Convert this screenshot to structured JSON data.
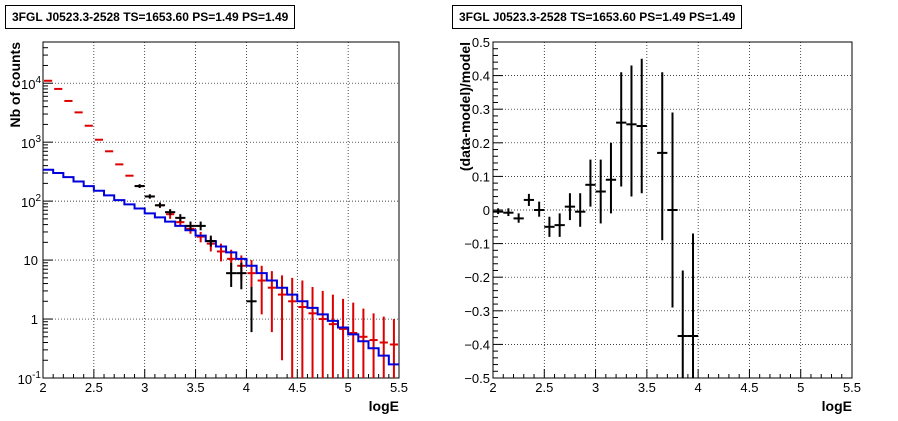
{
  "chart_data": [
    {
      "type": "histogram",
      "title": "3FGL J0523.3-2528 TS=1653.60 PS=1.49 PS=1.49",
      "xlabel": "logE",
      "ylabel": "Nb of counts",
      "xlim": [
        2,
        5.5
      ],
      "ylim": [
        0.1,
        50000
      ],
      "yscale": "log",
      "grid": true,
      "x_ticks": [
        "2",
        "2.5",
        "3",
        "3.5",
        "4",
        "4.5",
        "5",
        "5.5"
      ],
      "y_ticks": [
        "10^-1",
        "1",
        "10",
        "10^2",
        "10^3",
        "10^4"
      ],
      "series": [
        {
          "color": "#dd0000",
          "style": "markers-with-errors",
          "bins": [
            [
              2.0,
              2.1
            ],
            [
              2.1,
              2.2
            ],
            [
              2.2,
              2.3
            ],
            [
              2.3,
              2.4
            ],
            [
              2.4,
              2.5
            ],
            [
              2.5,
              2.6
            ],
            [
              2.6,
              2.7
            ],
            [
              2.7,
              2.8
            ],
            [
              2.8,
              2.9
            ],
            [
              2.9,
              3.0
            ],
            [
              3.0,
              3.1
            ],
            [
              3.1,
              3.2
            ],
            [
              3.2,
              3.3
            ],
            [
              3.3,
              3.4
            ],
            [
              3.4,
              3.5
            ],
            [
              3.5,
              3.6
            ],
            [
              3.6,
              3.7
            ],
            [
              3.7,
              3.8
            ],
            [
              3.8,
              3.9
            ],
            [
              3.9,
              4.0
            ],
            [
              4.0,
              4.1
            ],
            [
              4.1,
              4.2
            ],
            [
              4.2,
              4.3
            ],
            [
              4.3,
              4.4
            ],
            [
              4.4,
              4.5
            ],
            [
              4.5,
              4.6
            ],
            [
              4.6,
              4.7
            ],
            [
              4.7,
              4.8
            ],
            [
              4.8,
              4.9
            ],
            [
              4.9,
              5.0
            ],
            [
              5.0,
              5.1
            ],
            [
              5.1,
              5.2
            ],
            [
              5.2,
              5.3
            ],
            [
              5.3,
              5.4
            ],
            [
              5.4,
              5.5
            ]
          ],
          "values": [
            11000,
            8000,
            5000,
            3200,
            1900,
            1100,
            700,
            420,
            270,
            180,
            120,
            85,
            60,
            44,
            34,
            25,
            19,
            14,
            10.5,
            8,
            6,
            4.5,
            3.4,
            2.6,
            2,
            1.6,
            1.25,
            1.0,
            0.82,
            0.68,
            0.58,
            0.5,
            0.44,
            0.4,
            0.37
          ],
          "err_lo": [
            null,
            null,
            null,
            null,
            null,
            null,
            null,
            null,
            null,
            null,
            null,
            null,
            50,
            38,
            28,
            20,
            14,
            9.5,
            6.5,
            4.5,
            2.5,
            1.2,
            0.6,
            0.2,
            0.1,
            0.1,
            0.1,
            0.1,
            0.1,
            0.1,
            0.1,
            0.1,
            0.1,
            0.1,
            0.1
          ],
          "err_hi": [
            null,
            null,
            null,
            null,
            null,
            null,
            null,
            null,
            null,
            null,
            null,
            null,
            72,
            52,
            40,
            30,
            24,
            19,
            15,
            12,
            10,
            8,
            6.5,
            5.5,
            5,
            4.5,
            3.5,
            3,
            2.6,
            2.2,
            1.9,
            1.5,
            1.25,
            1.1,
            1.0
          ]
        },
        {
          "color": "#0000dd",
          "style": "step",
          "edges": [
            2.0,
            2.1,
            2.2,
            2.3,
            2.4,
            2.5,
            2.6,
            2.7,
            2.8,
            2.9,
            3.0,
            3.1,
            3.2,
            3.3,
            3.4,
            3.5,
            3.6,
            3.7,
            3.8,
            3.9,
            4.0,
            4.1,
            4.2,
            4.3,
            4.4,
            4.5,
            4.6,
            4.7,
            4.8,
            4.9,
            5.0,
            5.1,
            5.2,
            5.3,
            5.4,
            5.5
          ],
          "values": [
            340,
            300,
            255,
            215,
            180,
            150,
            125,
            104,
            88,
            75,
            62,
            53,
            45,
            38,
            32,
            26,
            21,
            17,
            13.5,
            10.5,
            8,
            6,
            4.5,
            3.4,
            2.6,
            2,
            1.55,
            1.2,
            0.93,
            0.72,
            0.55,
            0.42,
            0.32,
            0.24,
            0.17
          ]
        },
        {
          "color": "#000000",
          "style": "markers-with-errors",
          "x": [
            2.95,
            3.05,
            3.15,
            3.25,
            3.35,
            3.45,
            3.55,
            3.65,
            3.85,
            3.95,
            4.05
          ],
          "y": [
            180,
            120,
            85,
            65,
            52,
            38,
            38,
            21,
            6,
            6,
            2
          ],
          "xerr": 0.05,
          "err_lo": [
            167,
            110,
            77,
            58,
            45,
            32,
            32,
            17,
            3.5,
            3.2,
            0.6
          ],
          "err_hi": [
            194,
            131,
            95,
            73,
            60,
            45,
            45,
            26,
            9,
            9,
            3.5
          ]
        }
      ]
    },
    {
      "type": "scatter",
      "title": "3FGL J0523.3-2528 TS=1653.60 PS=1.49 PS=1.49",
      "xlabel": "logE",
      "ylabel": "(data-model)/model",
      "xlim": [
        2,
        5.5
      ],
      "ylim": [
        -0.5,
        0.5
      ],
      "grid": true,
      "x_ticks": [
        "2",
        "2.5",
        "3",
        "3.5",
        "4",
        "4.5",
        "5",
        "5.5"
      ],
      "y_ticks": [
        "−0.5",
        "−0.4",
        "−0.3",
        "−0.2",
        "−0.1",
        "0",
        "0.1",
        "0.2",
        "0.3",
        "0.4",
        "0.5"
      ],
      "series": [
        {
          "color": "#000000",
          "x": [
            2.05,
            2.15,
            2.25,
            2.35,
            2.45,
            2.55,
            2.65,
            2.75,
            2.85,
            2.95,
            3.05,
            3.15,
            3.25,
            3.35,
            3.45,
            3.65,
            3.75,
            3.85,
            3.95
          ],
          "y": [
            -0.005,
            -0.008,
            -0.025,
            0.03,
            0.0,
            -0.05,
            -0.045,
            0.01,
            -0.005,
            0.075,
            0.055,
            0.09,
            0.26,
            0.255,
            0.25,
            0.17,
            0.0,
            -0.375,
            -0.375
          ],
          "xerr": 0.05,
          "err_lo": [
            -0.012,
            -0.018,
            -0.038,
            0.012,
            -0.02,
            -0.08,
            -0.08,
            -0.03,
            -0.05,
            0.01,
            -0.04,
            -0.01,
            0.07,
            0.04,
            0.05,
            -0.09,
            -0.29,
            -0.5,
            -0.5
          ],
          "err_hi": [
            0.005,
            0.005,
            -0.01,
            0.048,
            0.025,
            -0.02,
            -0.01,
            0.05,
            0.05,
            0.15,
            0.15,
            0.2,
            0.41,
            0.43,
            0.45,
            0.41,
            0.29,
            -0.18,
            -0.07
          ]
        }
      ]
    }
  ]
}
